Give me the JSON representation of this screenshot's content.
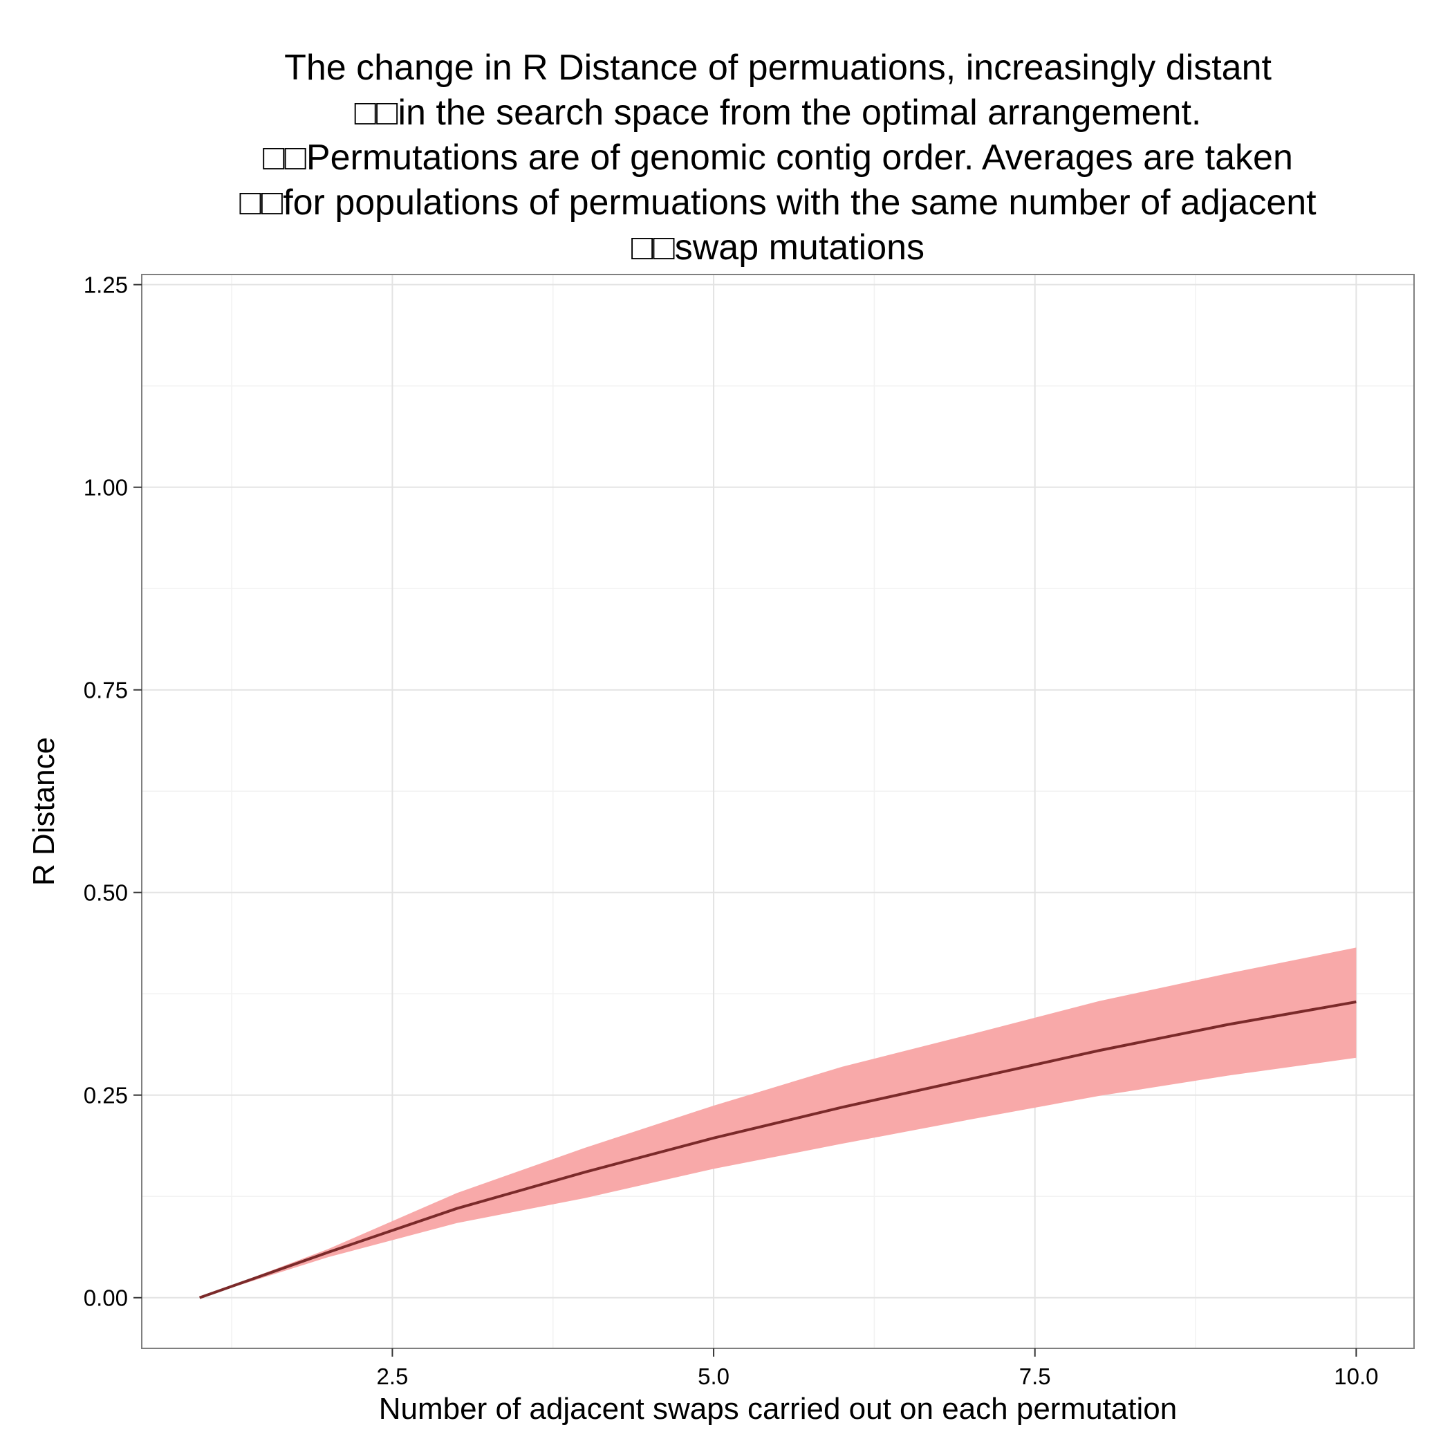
{
  "chart_data": {
    "type": "line",
    "title_lines": [
      "The change in R Distance of permuations, increasingly distant",
      "□□in the search space from the optimal arrangement.",
      "□□Permutations are of genomic contig order. Averages are taken",
      "□□for populations of permuations with the same number of adjacent",
      "□□swap mutations"
    ],
    "xlabel": "Number of adjacent swaps carried out on each permutation",
    "ylabel": "R Distance",
    "xlim": [
      0.55,
      10.45
    ],
    "ylim": [
      -0.0625,
      1.2625
    ],
    "x_ticks": [
      2.5,
      5.0,
      7.5,
      10.0
    ],
    "x_tick_labels": [
      "2.5",
      "5.0",
      "7.5",
      "10.0"
    ],
    "y_ticks": [
      0.0,
      0.25,
      0.5,
      0.75,
      1.0,
      1.25
    ],
    "y_tick_labels": [
      "0.00",
      "0.25",
      "0.50",
      "0.75",
      "1.00",
      "1.25"
    ],
    "grid": true,
    "series": [
      {
        "x": [
          1,
          2,
          3,
          4,
          5,
          6,
          7,
          8,
          9,
          10
        ],
        "mean": [
          0.0,
          0.056,
          0.11,
          0.155,
          0.197,
          0.235,
          0.27,
          0.305,
          0.337,
          0.365
        ],
        "lower": [
          0.0,
          0.05,
          0.092,
          0.123,
          0.159,
          0.19,
          0.22,
          0.249,
          0.274,
          0.296
        ],
        "upper": [
          0.0,
          0.06,
          0.129,
          0.185,
          0.237,
          0.285,
          0.325,
          0.366,
          0.4,
          0.432
        ],
        "line_color": "#7b2a2a",
        "band_color": "#f8a9a9"
      }
    ]
  }
}
